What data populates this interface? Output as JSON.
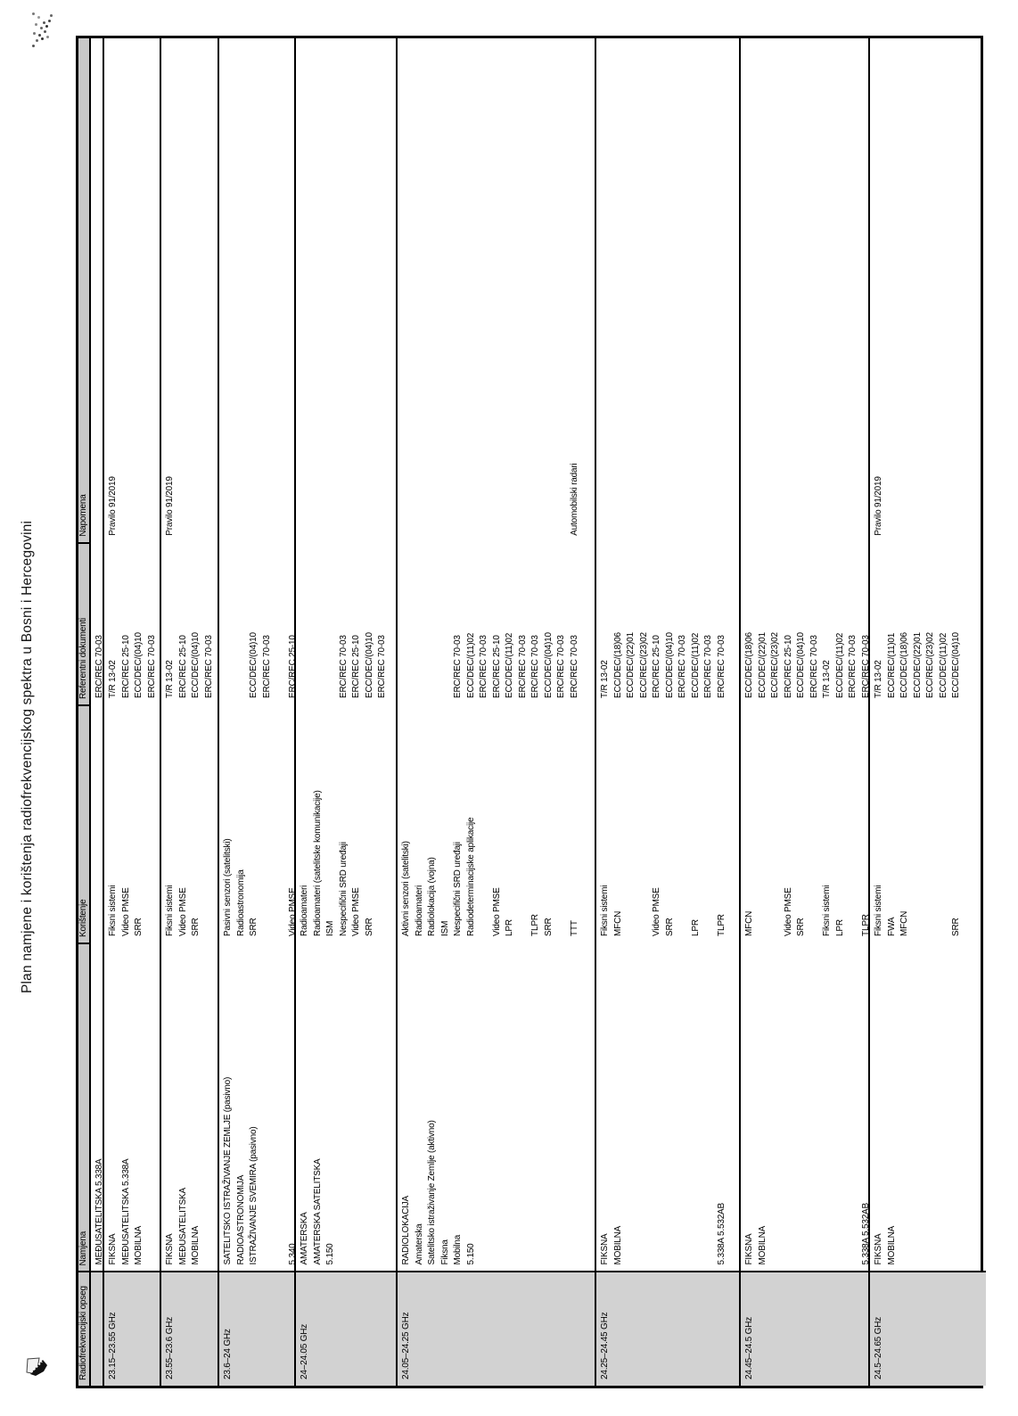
{
  "title": "Plan namjene i korištenja radiofrekvencijskog spektra u Bosni i Hercegovini",
  "icons": {
    "top_left": "speckle-artifact",
    "bottom_left": "pen-nib-icon"
  },
  "colors": {
    "header_bg": "#c8c8c8",
    "band_column_bg": "#d2d2d2",
    "border": "#000000",
    "page_bg": "#ffffff"
  },
  "table": {
    "headers": [
      "Radiofrekvencijski opseg",
      "Namjena",
      "Korištenje",
      "Referentni dokumenti",
      "Napomena"
    ],
    "rows": [
      {
        "band": "",
        "namjena": [
          "MEĐUSATELITSKA 5.338A"
        ],
        "koristenje": [],
        "referentni": [
          "ERC/REC 70-03"
        ],
        "napomena": []
      },
      {
        "band": "23.15–23.55 GHz",
        "namjena": [
          "FIKSNA",
          "MEĐUSATELITSKA 5.338A",
          "MOBILNA"
        ],
        "koristenje": [
          "Fiksni sistemi",
          "Video PMSE",
          "SRR"
        ],
        "referentni": [
          "T/R 13-02",
          "ERC/REC 25-10",
          "ECC/DEC/(04)10",
          "ERC/REC 70-03"
        ],
        "napomena": [
          "Pravilo 91/2019"
        ]
      },
      {
        "band": "23.55–23.6 GHz",
        "namjena": [
          "FIKSNA",
          "MEĐUSATELITSKA",
          "MOBILNA"
        ],
        "koristenje": [
          "Fiksni sistemi",
          "Video PMSE",
          "SRR"
        ],
        "referentni": [
          "T/R 13-02",
          "ERC/REC 25-10",
          "ECC/DEC/(04)10",
          "ERC/REC 70-03"
        ],
        "napomena": [
          "Pravilo 91/2019"
        ]
      },
      {
        "band": "23.6–24 GHz",
        "namjena": [
          "SATELITSKO ISTRAŽIVANJE ZEMLJE (pasivno)",
          "RADIOASTRONOMIJA",
          "ISTRAŽIVANJE SVEMIRA (pasivno)",
          "",
          "",
          "5.340"
        ],
        "koristenje": [
          "Pasivni senzori (satelitski)",
          "Radioastronomija",
          "SRR",
          "",
          "",
          "Video PMSE"
        ],
        "referentni": [
          "",
          "",
          "ECC/DEC/(04)10",
          "ERC/REC 70-03",
          "",
          "ERC/REC 25-10"
        ],
        "napomena": []
      },
      {
        "band": "24–24.05 GHz",
        "namjena": [
          "AMATERSKA",
          "AMATERSKA SATELITSKA",
          "5.150"
        ],
        "koristenje": [
          "Radioamateri",
          "Radioamateri (satelitske komunikacije)",
          "ISM",
          "Nespecifični SRD uređaji",
          "Video PMSE",
          "SRR"
        ],
        "referentni": [
          "",
          "",
          "",
          "ERC/REC 70-03",
          "ERC/REC 25-10",
          "ECC/DEC/(04)10",
          "ERC/REC 70-03"
        ],
        "napomena": []
      },
      {
        "band": "24.05–24.25 GHz",
        "namjena": [
          "RADIOLOKACIJA",
          "Amaterska",
          "Satelitsko istraživanje Zemlje (aktivno)",
          "Fiksna",
          "Mobilna",
          "5.150"
        ],
        "koristenje": [
          "Aktivni senzori (satelitski)",
          "Radioamateri",
          "Radiolokacija (vojna)",
          "ISM",
          "Nespecifični SRD uređaji",
          "Radiodeterminacijske aplikacije",
          "",
          "Video PMSE",
          "LPR",
          "",
          "TLPR",
          "SRR",
          "",
          "TTT"
        ],
        "referentni": [
          "",
          "",
          "",
          "",
          "ERC/REC 70-03",
          "ECC/DEC/(11)02",
          "ERC/REC 70-03",
          "ERC/REC 25-10",
          "ECC/DEC/(11)02",
          "ERC/REC 70-03",
          "ERC/REC 70-03",
          "ECC/DEC/(04)10",
          "ERC/REC 70-03",
          "ERC/REC 70-03"
        ],
        "napomena": [
          "",
          "",
          "",
          "",
          "",
          "",
          "",
          "",
          "",
          "",
          "",
          "",
          "",
          "Automobilski radari"
        ]
      },
      {
        "band": "24.25–24.45 GHz",
        "namjena": [
          "FIKSNA",
          "MOBILNA",
          "",
          "",
          "",
          "",
          "",
          "",
          "",
          "5.338A 5.532AB"
        ],
        "koristenje": [
          "Fiksni sistemi",
          "MFCN",
          "",
          "",
          "Video PMSE",
          "SRR",
          "",
          "LPR",
          "",
          "TLPR"
        ],
        "referentni": [
          "T/R 13-02",
          "ECC/DEC/(18)06",
          "ECC/DEC/(22)01",
          "ECC/REC/(23)02",
          "ERC/REC 25-10",
          "ECC/DEC/(04)10",
          "ERC/REC 70-03",
          "ECC/DEC/(11)02",
          "ERC/REC 70-03",
          "ERC/REC 70-03"
        ],
        "napomena": []
      },
      {
        "band": "24.45–24.5 GHz",
        "namjena": [
          "FIKSNA",
          "MOBILNA",
          "",
          "",
          "",
          "",
          "",
          "",
          "",
          "5.338A 5.532AB"
        ],
        "koristenje": [
          "MFCN",
          "",
          "",
          "Video PMSE",
          "SRR",
          "",
          "Fiksni sistemi",
          "LPR",
          "",
          "TLPR"
        ],
        "referentni": [
          "ECC/DEC/(18)06",
          "ECC/DEC/(22)01",
          "ECC/REC/(23)02",
          "ERC/REC 25-10",
          "ECC/DEC/(04)10",
          "ERC/REC 70-03",
          "T/R 13-02",
          "ECC/DEC/(11)02",
          "ERC/REC 70-03",
          "ERC/REC 70-03"
        ],
        "napomena": []
      },
      {
        "band": "24.5–24.65 GHz",
        "namjena": [
          "FIKSNA",
          "MOBILNA"
        ],
        "koristenje": [
          "Fiksni sistemi",
          "FWA",
          "MFCN",
          "",
          "",
          "",
          "SRR"
        ],
        "referentni": [
          "T/R 13-02",
          "ECC/REC/(11)01",
          "ECC/DEC/(18)06",
          "ECC/DEC/(22)01",
          "ECC/REC/(23)02",
          "ECC/DEC/(11)02",
          "ECC/DEC/(04)10"
        ],
        "napomena": [
          "Pravilo 91/2019"
        ]
      }
    ]
  }
}
